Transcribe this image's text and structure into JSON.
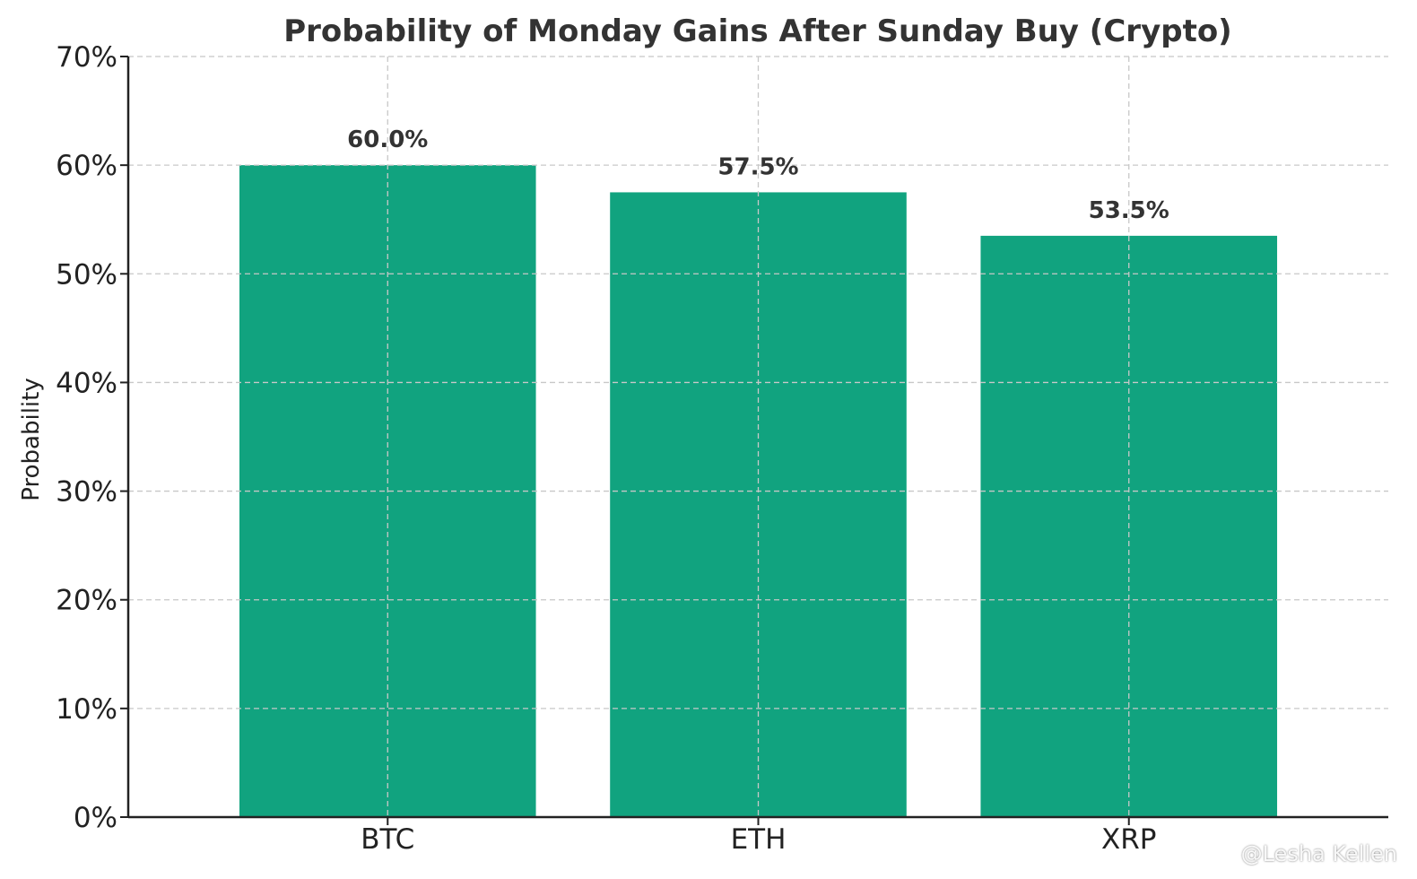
{
  "chart_data": {
    "type": "bar",
    "title": "Probability of Monday Gains After Sunday Buy (Crypto)",
    "xlabel": "",
    "ylabel": "Probability",
    "categories": [
      "BTC",
      "ETH",
      "XRP"
    ],
    "values": [
      60.0,
      57.5,
      53.5
    ],
    "data_labels": [
      "60.0%",
      "57.5%",
      "53.5%"
    ],
    "ylim": [
      0,
      70
    ],
    "yticks": [
      0,
      10,
      20,
      30,
      40,
      50,
      60,
      70
    ],
    "ytick_labels": [
      "0%",
      "10%",
      "20%",
      "30%",
      "40%",
      "50%",
      "60%",
      "70%"
    ],
    "grid": true,
    "bar_color": "#11a37f"
  },
  "watermark": {
    "text": "@Lesha Kellen",
    "icon": "logo-icon"
  }
}
